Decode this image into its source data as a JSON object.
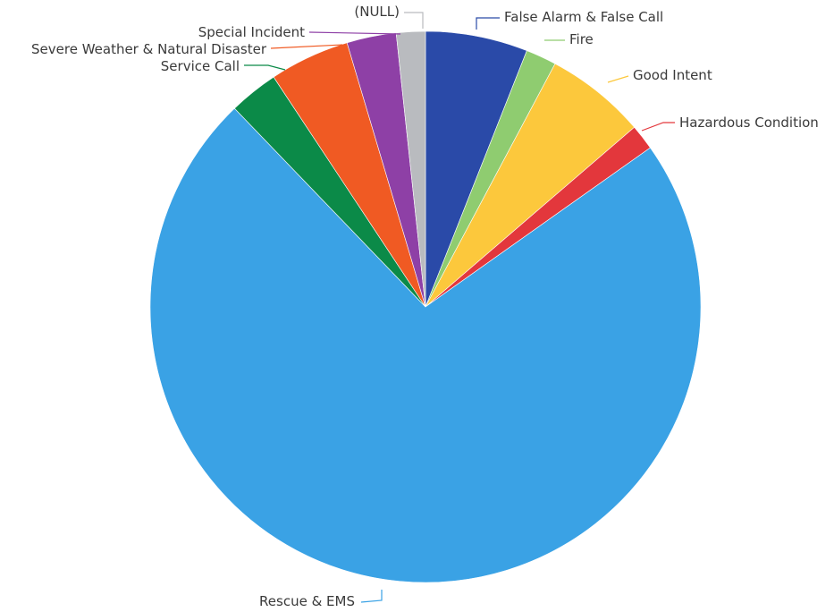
{
  "chart_data": {
    "type": "pie",
    "title": "",
    "legend": "none",
    "start_angle_deg": 0,
    "direction": "clockwise",
    "slices": [
      {
        "label": "False Alarm & False Call",
        "value": 6.0,
        "color": "#2a4aa8"
      },
      {
        "label": "Fire",
        "value": 1.8,
        "color": "#8fcc70"
      },
      {
        "label": "Good Intent",
        "value": 5.9,
        "color": "#fcc83c"
      },
      {
        "label": "Hazardous Condition",
        "value": 1.5,
        "color": "#e3373c"
      },
      {
        "label": "Rescue & EMS",
        "value": 72.6,
        "color": "#3aa2e5"
      },
      {
        "label": "Service Call",
        "value": 2.9,
        "color": "#0b8a48"
      },
      {
        "label": "Severe Weather & Natural Disaster",
        "value": 4.7,
        "color": "#f05a23"
      },
      {
        "label": "Special Incident",
        "value": 2.9,
        "color": "#8e40a6"
      },
      {
        "label": "(NULL)",
        "value": 1.7,
        "color": "#b9bbbf"
      }
    ]
  }
}
